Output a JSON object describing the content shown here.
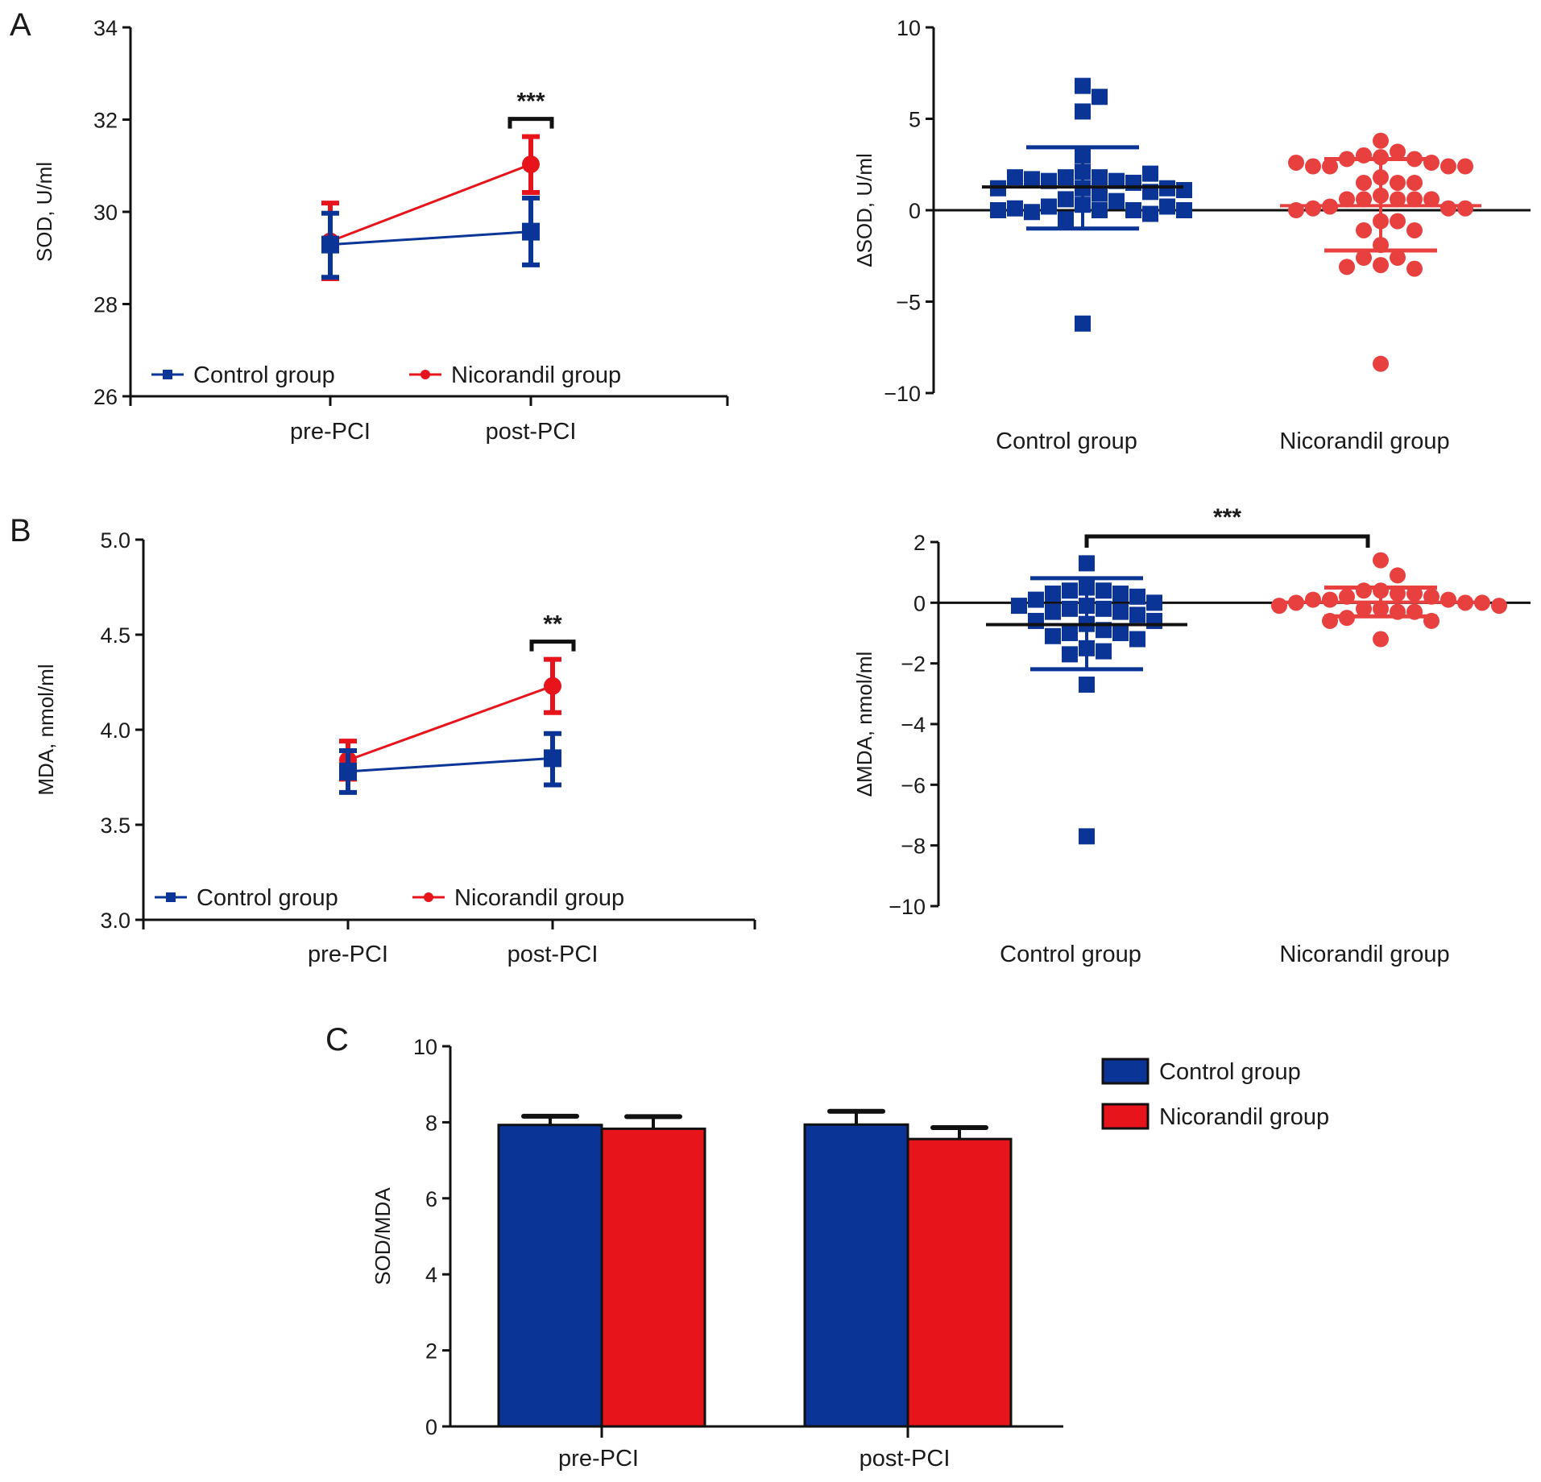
{
  "figure": {
    "panel_letters": [
      "A",
      "B",
      "C"
    ],
    "colors": {
      "control": "#0a3596",
      "nicorandil": "#e8141c",
      "nicorandil_scatter": "#e8403f",
      "axis": "#111111"
    }
  },
  "chart_data": [
    {
      "id": "A-left",
      "type": "line",
      "panel": "A",
      "title": "",
      "xlabel": "",
      "ylabel": "SOD, U/ml",
      "categories": [
        "pre-PCI",
        "post-PCI"
      ],
      "ylim": [
        26,
        34
      ],
      "yticks": [
        26,
        28,
        30,
        32,
        34
      ],
      "series": [
        {
          "name": "Control group",
          "marker": "square",
          "values": [
            29.29,
            29.57
          ],
          "error_low": [
            28.58,
            28.85
          ],
          "error_high": [
            29.97,
            30.3
          ]
        },
        {
          "name": "Nicorandil group",
          "marker": "circle",
          "values": [
            29.36,
            31.03
          ],
          "error_low": [
            28.55,
            30.42
          ],
          "error_high": [
            30.19,
            31.63
          ]
        }
      ],
      "legend": {
        "position": "bottom",
        "entries": [
          "Control group",
          "Nicorandil group"
        ]
      },
      "annotations": [
        {
          "text": "***",
          "at": "post-PCI",
          "type": "bracket"
        }
      ],
      "grid": false
    },
    {
      "id": "A-right",
      "type": "scatter",
      "panel": "A",
      "title": "",
      "xlabel": "",
      "ylabel": "ΔSOD, U/ml",
      "categories": [
        "Control group",
        "Nicorandil group"
      ],
      "ylim": [
        -10,
        10
      ],
      "yticks": [
        -10,
        -5,
        0,
        5,
        10
      ],
      "ytick_labels": [
        "−10",
        "−5",
        "0",
        "5",
        "10"
      ],
      "series": [
        {
          "name": "Control group",
          "marker": "square",
          "mean": 1.27,
          "sd_low": -1.0,
          "sd_high": 3.44,
          "values": [
            6.8,
            6.2,
            5.4,
            3.0,
            2.1,
            1.8,
            1.8,
            1.6,
            1.6,
            1.5,
            1.7,
            2.0,
            1.8,
            1.2,
            1.2,
            1.0,
            0.9,
            1.2,
            1.1,
            0.6,
            0.5,
            0.3,
            0.2,
            0.0,
            0.0,
            -0.1,
            -0.2,
            0.1,
            0.2,
            0.0,
            0.0,
            -0.5,
            -6.2
          ]
        },
        {
          "name": "Nicorandil group",
          "marker": "circle",
          "mean": 0.25,
          "sd_low": -2.2,
          "sd_high": 2.8,
          "values": [
            3.8,
            3.2,
            3.0,
            2.9,
            2.8,
            2.8,
            2.6,
            2.4,
            2.4,
            2.4,
            2.4,
            2.6,
            1.8,
            1.5,
            1.5,
            1.5,
            0.8,
            0.6,
            0.6,
            0.6,
            0.6,
            0.6,
            0.2,
            0.1,
            0.1,
            0.1,
            0.0,
            -0.6,
            -0.6,
            -1.1,
            -1.1,
            -1.9,
            -2.6,
            -2.6,
            -3.0,
            -3.2,
            -3.1,
            -8.4
          ]
        }
      ],
      "reference_line": 0,
      "grid": false
    },
    {
      "id": "B-left",
      "type": "line",
      "panel": "B",
      "title": "",
      "xlabel": "",
      "ylabel": "MDA, nmol/ml",
      "categories": [
        "pre-PCI",
        "post-PCI"
      ],
      "ylim": [
        3.0,
        5.0
      ],
      "yticks": [
        3.0,
        3.5,
        4.0,
        4.5,
        5.0
      ],
      "ytick_labels": [
        "3.0",
        "3.5",
        "4.0",
        "4.5",
        "5.0"
      ],
      "series": [
        {
          "name": "Control group",
          "marker": "square",
          "values": [
            3.78,
            3.85
          ],
          "error_low": [
            3.67,
            3.71
          ],
          "error_high": [
            3.89,
            3.98
          ]
        },
        {
          "name": "Nicorandil group",
          "marker": "circle",
          "values": [
            3.84,
            4.23
          ],
          "error_low": [
            3.74,
            4.09
          ],
          "error_high": [
            3.94,
            4.37
          ]
        }
      ],
      "legend": {
        "position": "bottom",
        "entries": [
          "Control group",
          "Nicorandil group"
        ]
      },
      "annotations": [
        {
          "text": "**",
          "at": "post-PCI",
          "type": "bracket"
        }
      ],
      "grid": false
    },
    {
      "id": "B-right",
      "type": "scatter",
      "panel": "B",
      "title": "",
      "xlabel": "",
      "ylabel": "ΔMDA, nmol/ml",
      "categories": [
        "Control group",
        "Nicorandil group"
      ],
      "ylim": [
        -10,
        2
      ],
      "yticks": [
        -10,
        -8,
        -6,
        -4,
        -2,
        0,
        2
      ],
      "ytick_labels": [
        "−10",
        "−8",
        "−6",
        "−4",
        "−2",
        "0",
        "2"
      ],
      "series": [
        {
          "name": "Control group",
          "marker": "square",
          "mean": -0.72,
          "sd_low": -2.19,
          "sd_high": 0.81,
          "values": [
            1.3,
            0.5,
            0.4,
            0.4,
            0.3,
            0.3,
            0.2,
            0.1,
            0.0,
            -0.1,
            -0.1,
            -0.2,
            -0.2,
            -0.3,
            -0.3,
            -0.4,
            -0.6,
            -0.6,
            -0.7,
            -0.9,
            -1.0,
            -1.0,
            -1.1,
            -1.2,
            -1.5,
            -1.6,
            -1.7,
            -2.7,
            -7.7
          ]
        },
        {
          "name": "Nicorandil group",
          "marker": "circle",
          "mean": 0.02,
          "sd_low": -0.45,
          "sd_high": 0.5,
          "values": [
            1.4,
            0.9,
            0.4,
            0.4,
            0.3,
            0.3,
            0.2,
            0.2,
            0.1,
            0.1,
            0.1,
            0.0,
            0.0,
            0.0,
            -0.1,
            -0.1,
            -0.2,
            -0.2,
            -0.3,
            -0.3,
            -0.5,
            -0.6,
            -0.6,
            -1.2
          ]
        }
      ],
      "reference_line": 0,
      "annotations": [
        {
          "text": "***",
          "between": [
            "Control group",
            "Nicorandil group"
          ],
          "type": "bracket"
        }
      ],
      "grid": false
    },
    {
      "id": "C",
      "type": "bar",
      "panel": "C",
      "title": "",
      "xlabel": "",
      "ylabel": "SOD/MDA",
      "categories": [
        "pre-PCI",
        "post-PCI"
      ],
      "ylim": [
        0,
        10
      ],
      "yticks": [
        0,
        2,
        4,
        6,
        8,
        10
      ],
      "series": [
        {
          "name": "Control group",
          "values": [
            7.93,
            7.94
          ],
          "error_high": [
            8.16,
            8.29
          ]
        },
        {
          "name": "Nicorandil group",
          "values": [
            7.83,
            7.56
          ],
          "error_high": [
            8.15,
            7.86
          ]
        }
      ],
      "legend": {
        "position": "top-right",
        "entries": [
          "Control group",
          "Nicorandil group"
        ]
      },
      "grid": false
    }
  ]
}
